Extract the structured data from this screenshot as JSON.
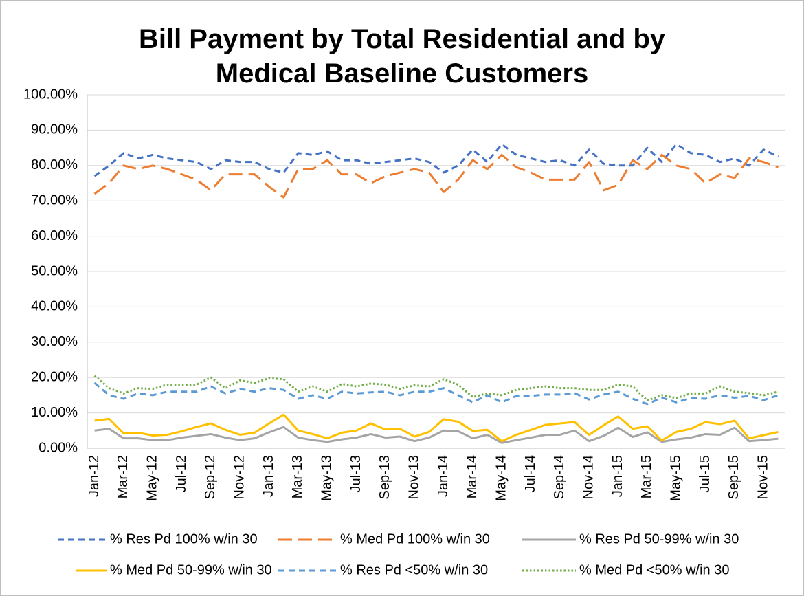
{
  "chart_data": {
    "type": "line",
    "title": "Bill Payment by Total Residential and by Medical Baseline Customers",
    "categories": [
      "Jan-12",
      null,
      "Mar-12",
      null,
      "May-12",
      null,
      "Jul-12",
      null,
      "Sep-12",
      null,
      "Nov-12",
      null,
      "Jan-13",
      null,
      "Mar-13",
      null,
      "May-13",
      null,
      "Jul-13",
      null,
      "Sep-13",
      null,
      "Nov-13",
      null,
      "Jan-14",
      null,
      "Mar-14",
      null,
      "May-14",
      null,
      "Jul-14",
      null,
      "Sep-14",
      null,
      "Nov-14",
      null,
      "Jan-15",
      null,
      "Mar-15",
      null,
      "May-15",
      null,
      "Jul-15",
      null,
      "Sep-15",
      null,
      "Nov-15",
      null
    ],
    "ylim": [
      0,
      100
    ],
    "yticks": [
      {
        "value": 0,
        "label": "0.00%"
      },
      {
        "value": 10,
        "label": "10.00%"
      },
      {
        "value": 20,
        "label": "20.00%"
      },
      {
        "value": 30,
        "label": "30.00%"
      },
      {
        "value": 40,
        "label": "40.00%"
      },
      {
        "value": 50,
        "label": "50.00%"
      },
      {
        "value": 60,
        "label": "60.00%"
      },
      {
        "value": 70,
        "label": "70.00%"
      },
      {
        "value": 80,
        "label": "80.00%"
      },
      {
        "value": 90,
        "label": "90.00%"
      },
      {
        "value": 100,
        "label": "100.00%"
      }
    ],
    "grid": true,
    "legend": "bottom",
    "series": [
      {
        "name": "% Res Pd 100% w/in 30",
        "color": "#4472c4",
        "style": "dashed",
        "values": [
          77,
          80,
          83.5,
          82,
          83,
          82,
          81.5,
          81,
          79,
          81.5,
          81,
          81,
          79,
          78,
          83.5,
          83,
          84,
          81.5,
          81.5,
          80.5,
          81,
          81.5,
          82,
          81,
          78,
          80,
          84.5,
          81,
          86,
          83,
          82,
          81,
          81.5,
          80,
          84.5,
          80.5,
          80,
          80,
          85,
          81,
          86,
          83.5,
          83,
          81,
          82,
          80,
          84.5,
          82.5
        ]
      },
      {
        "name": "% Med Pd 100% w/in 30",
        "color": "#ed7d31",
        "style": "long-dash",
        "values": [
          72,
          75,
          80,
          79,
          80,
          79,
          77.5,
          76,
          73,
          77.5,
          77.5,
          77.5,
          74,
          71,
          79,
          79,
          81.5,
          77.5,
          77.5,
          75,
          77,
          78,
          79,
          78,
          72.5,
          76,
          81.5,
          79,
          83,
          79.5,
          78,
          76,
          76,
          76,
          81,
          73,
          74.5,
          81.5,
          79,
          83,
          80,
          79,
          75,
          77.5,
          76.5,
          82,
          81,
          79.5
        ]
      },
      {
        "name": "% Res Pd 50-99% w/in 30",
        "color": "#a5a5a5",
        "style": "solid",
        "values": [
          5,
          5.5,
          2.8,
          2.8,
          2.3,
          2.3,
          3,
          3.5,
          4,
          3,
          2.3,
          2.8,
          4.5,
          6,
          3,
          2.3,
          1.8,
          2.5,
          3,
          4,
          3,
          3.3,
          2,
          3,
          5,
          4.8,
          2.8,
          3.8,
          1.5,
          2.3,
          3,
          3.8,
          3.8,
          5,
          2,
          3.5,
          5.8,
          3.2,
          4.5,
          1.8,
          2.5,
          3,
          4,
          3.8,
          5.8,
          2,
          2.3,
          2.7
        ]
      },
      {
        "name": "% Med Pd 50-99% w/in 30",
        "color": "#ffc000",
        "style": "solid",
        "values": [
          7.8,
          8.3,
          4.2,
          4.4,
          3.6,
          3.8,
          4.8,
          6,
          7,
          5.2,
          3.8,
          4.4,
          7,
          9.5,
          5,
          4,
          2.8,
          4.4,
          5,
          7,
          5.3,
          5.5,
          3.3,
          4.6,
          8.2,
          7.5,
          4.9,
          5.2,
          2,
          3.8,
          5.2,
          6.6,
          7,
          7.4,
          3.8,
          6.5,
          9,
          5.5,
          6.2,
          2.2,
          4.6,
          5.5,
          7.4,
          6.8,
          7.8,
          2.8,
          3.7,
          4.6
        ]
      },
      {
        "name": "% Res Pd <50% w/in 30",
        "color": "#5b9bd5",
        "style": "dashed",
        "values": [
          18.5,
          15,
          14,
          15.5,
          15,
          16,
          16,
          16,
          17.5,
          15.5,
          16.8,
          16,
          17,
          16.5,
          14,
          15,
          14,
          16,
          15.5,
          15.8,
          16,
          15,
          16,
          16,
          17,
          15,
          13,
          15,
          13,
          14.8,
          14.8,
          15.2,
          15.2,
          15.6,
          13.8,
          15.2,
          16,
          14,
          12.5,
          14.3,
          13,
          14.2,
          14,
          15,
          14.3,
          14.8,
          13.6,
          15
        ]
      },
      {
        "name": "% Med Pd <50% w/in 30",
        "color": "#70ad47",
        "style": "dotted",
        "values": [
          20.5,
          17,
          15.5,
          17,
          16.8,
          18,
          18,
          18,
          20,
          17,
          19.2,
          18.5,
          19.8,
          19.5,
          16,
          17.5,
          16,
          18.2,
          17.5,
          18.3,
          18,
          16.8,
          17.8,
          17.5,
          19.5,
          18,
          14.5,
          15.5,
          15,
          16.5,
          17,
          17.5,
          17,
          17,
          16.5,
          16.5,
          18,
          17.5,
          13.5,
          15,
          14.2,
          15.5,
          15.5,
          17.5,
          16,
          15.6,
          15,
          16
        ]
      }
    ]
  }
}
